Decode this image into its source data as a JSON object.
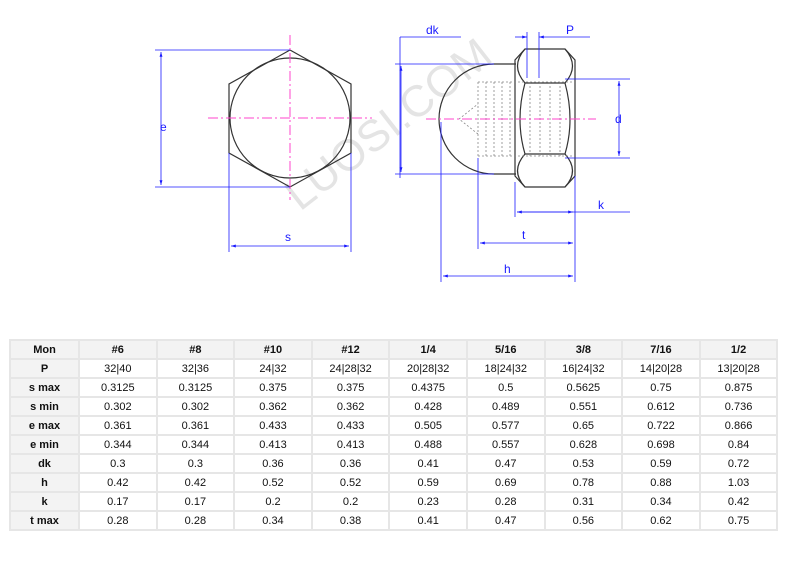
{
  "drawing": {
    "labels": {
      "e": "e",
      "s": "s",
      "dk": "dk",
      "P": "P",
      "d": "d",
      "k": "k",
      "t": "t",
      "h": "h"
    },
    "watermark": "LUOSI.COM",
    "colors": {
      "dimension": "#1a1aff",
      "centerline": "#ff44cc",
      "outline": "#333333"
    }
  },
  "table": {
    "headers": [
      "Mon",
      "#6",
      "#8",
      "#10",
      "#12",
      "1/4",
      "5/16",
      "3/8",
      "7/16",
      "1/2"
    ],
    "rows": [
      {
        "label": "P",
        "values": [
          "32|40",
          "32|36",
          "24|32",
          "24|28|32",
          "20|28|32",
          "18|24|32",
          "16|24|32",
          "14|20|28",
          "13|20|28"
        ]
      },
      {
        "label": "s max",
        "values": [
          "0.3125",
          "0.3125",
          "0.375",
          "0.375",
          "0.4375",
          "0.5",
          "0.5625",
          "0.75",
          "0.875"
        ]
      },
      {
        "label": "s min",
        "values": [
          "0.302",
          "0.302",
          "0.362",
          "0.362",
          "0.428",
          "0.489",
          "0.551",
          "0.612",
          "0.736"
        ]
      },
      {
        "label": "e max",
        "values": [
          "0.361",
          "0.361",
          "0.433",
          "0.433",
          "0.505",
          "0.577",
          "0.65",
          "0.722",
          "0.866"
        ]
      },
      {
        "label": "e min",
        "values": [
          "0.344",
          "0.344",
          "0.413",
          "0.413",
          "0.488",
          "0.557",
          "0.628",
          "0.698",
          "0.84"
        ]
      },
      {
        "label": "dk",
        "values": [
          "0.3",
          "0.3",
          "0.36",
          "0.36",
          "0.41",
          "0.47",
          "0.53",
          "0.59",
          "0.72"
        ]
      },
      {
        "label": "h",
        "values": [
          "0.42",
          "0.42",
          "0.52",
          "0.52",
          "0.59",
          "0.69",
          "0.78",
          "0.88",
          "1.03"
        ]
      },
      {
        "label": "k",
        "values": [
          "0.17",
          "0.17",
          "0.2",
          "0.2",
          "0.23",
          "0.28",
          "0.31",
          "0.34",
          "0.42"
        ]
      },
      {
        "label": "t max",
        "values": [
          "0.28",
          "0.28",
          "0.34",
          "0.38",
          "0.41",
          "0.47",
          "0.56",
          "0.62",
          "0.75"
        ]
      }
    ]
  }
}
